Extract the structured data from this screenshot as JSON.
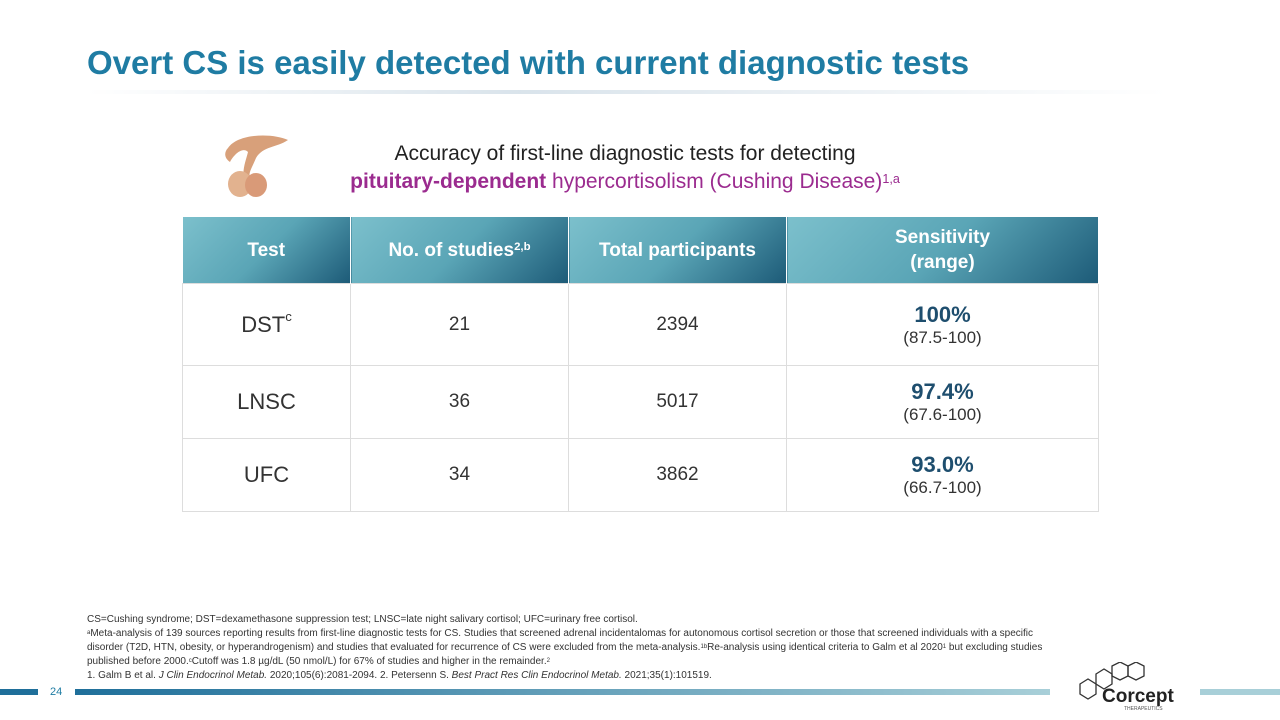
{
  "header": {
    "title": "Overt CS is easily detected with current diagnostic tests"
  },
  "subtitle": {
    "line1": "Accuracy of first-line diagnostic tests for detecting",
    "bold": "pituitary-dependent",
    "rest": " hypercortisolism (Cushing Disease)",
    "sup": "1,a"
  },
  "table": {
    "headers": [
      {
        "text": "Test"
      },
      {
        "text": "No. of studies",
        "sup": "2,b"
      },
      {
        "text": "Total participants"
      },
      {
        "text": "Sensitivity",
        "text2": "(range)"
      }
    ],
    "rows": [
      [
        {
          "text": "DST",
          "sup": "c"
        },
        {
          "text": "21"
        },
        {
          "text": "2394"
        },
        {
          "text": "100%",
          "text2": "(87.5-100)"
        }
      ],
      [
        {
          "text": "LNSC"
        },
        {
          "text": "36"
        },
        {
          "text": "5017"
        },
        {
          "text": "97.4%",
          "text2": "(67.6-100)"
        }
      ],
      [
        {
          "text": "UFC"
        },
        {
          "text": "34"
        },
        {
          "text": "3862"
        },
        {
          "text": "93.0%",
          "text2": "(66.7-100)"
        }
      ]
    ]
  },
  "footnotes": [
    [
      {
        "text": "CS=Cushing syndrome; DST=dexamethasone suppression test; LNSC=late night salivary cortisol; UFC=urinary free cortisol."
      }
    ],
    [
      {
        "sup": "a"
      },
      {
        "text": "Meta-analysis of 139 sources reporting results from first-line diagnostic tests for CS. Studies that screened adrenal incidentalomas for autonomous cortisol secretion or those that screened individuals with a specific disorder (T2D, HTN, obesity, or hyperandrogenism) and studies that evaluated for recurrence of CS were excluded from the meta-analysis."
      },
      {
        "sup": "1"
      },
      {
        "sup": "b"
      },
      {
        "text": "Re-analysis using identical criteria to Galm et al 2020"
      },
      {
        "sup": "1"
      },
      {
        "text": " but excluding studies published before 2000."
      },
      {
        "sup": "c"
      },
      {
        "text": "Cutoff was 1.8 µg/dL (50 nmol/L) for 67% of studies and higher in the remainder."
      },
      {
        "sup": "2"
      }
    ],
    [
      {
        "text": "1. Galm B et al. "
      },
      {
        "em": "J Clin Endocrinol Metab."
      },
      {
        "text": " 2020;105(6):2081-2094. 2. Petersenn S. "
      },
      {
        "em": "Best Pract Res Clin Endocrinol Metab."
      },
      {
        "text": " 2021;35(1):101519."
      }
    ]
  ],
  "footer": {
    "page": "24",
    "logo": "Corcept",
    "logo_sub": "THERAPEUTICS"
  }
}
